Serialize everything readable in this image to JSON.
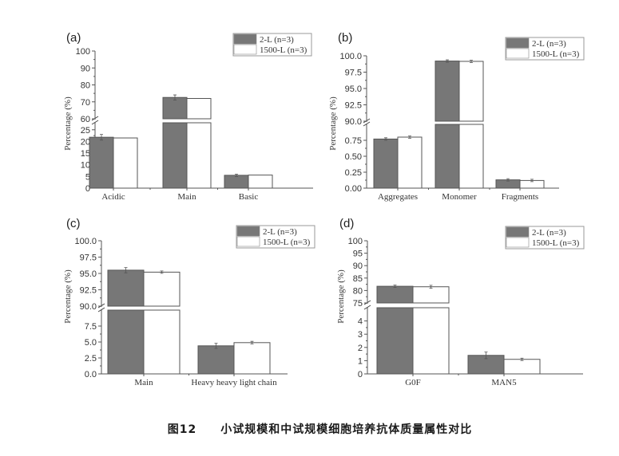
{
  "figure": {
    "caption_number": "图12",
    "caption_text": "小试规模和中试规模细胞培养抗体质量属性对比"
  },
  "colors": {
    "series_2L": "#777777",
    "series_1500L": "#ffffff",
    "axis": "#555555",
    "bar_stroke": "#555555"
  },
  "legend": [
    "2-L (n=3)",
    "1500-L (n=3)"
  ],
  "chart_data": [
    {
      "panel": "(a)",
      "type": "bar",
      "ylabel": "Percentage (%)",
      "xlabel": "",
      "categories": [
        "Acidic",
        "Main",
        "Basic"
      ],
      "series": [
        {
          "name": "2-L (n=3)",
          "values": [
            21.8,
            72.6,
            5.5
          ],
          "errors": [
            1.2,
            1.5,
            0.2
          ]
        },
        {
          "name": "1500-L (n=3)",
          "values": [
            21.5,
            72.0,
            5.6
          ],
          "errors": [
            0.0,
            0.0,
            0.0
          ]
        }
      ],
      "broken_axis": {
        "lower": [
          0,
          28
        ],
        "upper": [
          60,
          100
        ]
      },
      "lower_ticks": [
        "0",
        "5",
        "10",
        "15",
        "20",
        "25"
      ],
      "upper_ticks": [
        "60",
        "70",
        "80",
        "90",
        "100"
      ],
      "legend_position": "top-right",
      "grid": false
    },
    {
      "panel": "(b)",
      "type": "bar",
      "ylabel": "Percentage (%)",
      "xlabel": "",
      "categories": [
        "Aggregates",
        "Monomer",
        "Fragments"
      ],
      "series": [
        {
          "name": "2-L (n=3)",
          "values": [
            0.77,
            99.2,
            0.13
          ],
          "errors": [
            0.02,
            0.05,
            0.01
          ]
        },
        {
          "name": "1500-L (n=3)",
          "values": [
            0.8,
            99.15,
            0.12
          ],
          "errors": [
            0.01,
            0.03,
            0.01
          ]
        }
      ],
      "broken_axis": {
        "lower": [
          0,
          1.0
        ],
        "upper": [
          90,
          100
        ]
      },
      "lower_ticks": [
        "0.00",
        "0.25",
        "0.50",
        "0.75"
      ],
      "upper_ticks": [
        "90.0",
        "92.5",
        "95.0",
        "97.5",
        "100.0"
      ],
      "legend_position": "top-right",
      "grid": false
    },
    {
      "panel": "(c)",
      "type": "bar",
      "ylabel": "Percentage (%)",
      "xlabel": "",
      "categories": [
        "Main",
        "Heavy heavy light chain"
      ],
      "series": [
        {
          "name": "2-L (n=3)",
          "values": [
            95.5,
            4.4
          ],
          "errors": [
            0.4,
            0.4
          ]
        },
        {
          "name": "1500-L (n=3)",
          "values": [
            95.2,
            4.9
          ],
          "errors": [
            0.1,
            0.2
          ]
        }
      ],
      "broken_axis": {
        "lower": [
          0,
          10
        ],
        "upper": [
          90,
          100
        ]
      },
      "lower_ticks": [
        "0.0",
        "2.5",
        "5.0",
        "7.5"
      ],
      "upper_ticks": [
        "90.0",
        "92.5",
        "95.0",
        "97.5",
        "100.0"
      ],
      "legend_position": "top-right",
      "grid": false
    },
    {
      "panel": "(d)",
      "type": "bar",
      "ylabel": "Percentage (%)",
      "xlabel": "",
      "categories": [
        "G0F",
        "MAN5"
      ],
      "series": [
        {
          "name": "2-L (n=3)",
          "values": [
            81.7,
            1.4
          ],
          "errors": [
            0.3,
            0.25
          ]
        },
        {
          "name": "1500-L (n=3)",
          "values": [
            81.5,
            1.1
          ],
          "errors": [
            0.6,
            0.05
          ]
        }
      ],
      "broken_axis": {
        "lower": [
          0,
          5
        ],
        "upper": [
          75,
          100
        ]
      },
      "lower_ticks": [
        "0",
        "1",
        "2",
        "3",
        "4"
      ],
      "upper_ticks": [
        "75",
        "80",
        "85",
        "90",
        "95",
        "100"
      ],
      "legend_position": "top-right",
      "grid": false
    }
  ]
}
